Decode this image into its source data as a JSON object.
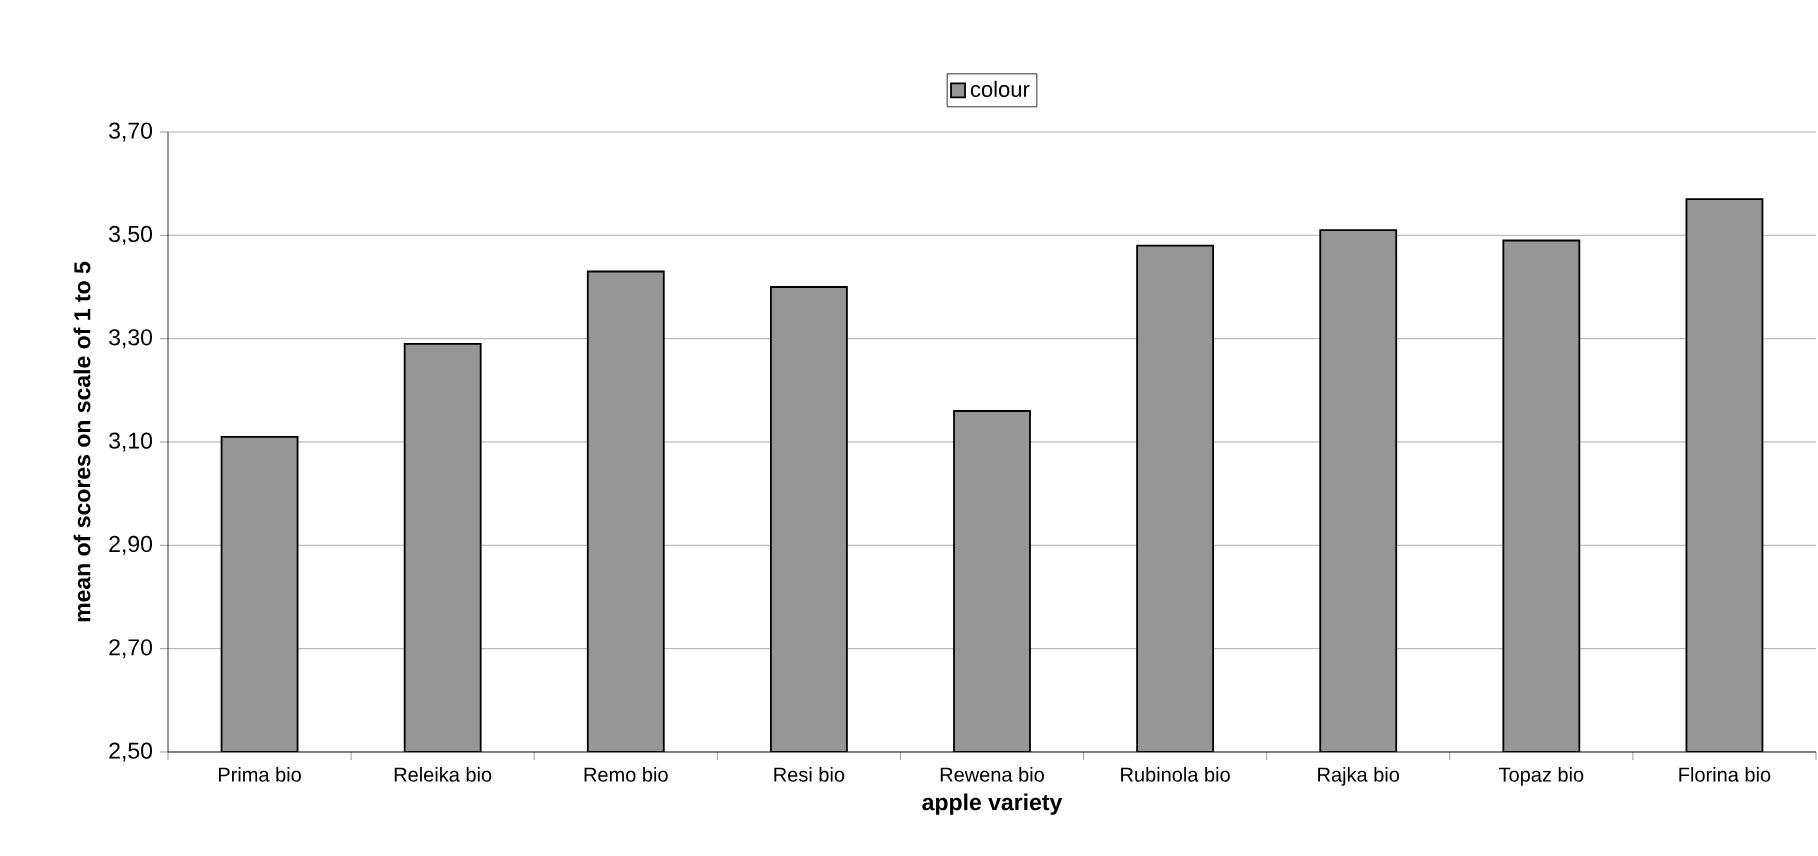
{
  "chart_data": {
    "type": "bar",
    "xlabel": "apple variety",
    "ylabel": "mean of scores on scale of 1 to 5",
    "categories": [
      "Prima bio",
      "Releika bio",
      "Remo bio",
      "Resi bio",
      "Rewena bio",
      "Rubinola bio",
      "Rajka bio",
      "Topaz bio",
      "Florina bio"
    ],
    "series": [
      {
        "name": "colour",
        "color": "#969696",
        "values": [
          3.11,
          3.29,
          3.43,
          3.4,
          3.16,
          3.48,
          3.51,
          3.49,
          3.57
        ]
      }
    ],
    "ylim": [
      2.5,
      3.7
    ],
    "yticks": [
      {
        "value": 2.5,
        "label": "2,50"
      },
      {
        "value": 2.7,
        "label": "2,70"
      },
      {
        "value": 2.9,
        "label": "2,90"
      },
      {
        "value": 3.1,
        "label": "3,10"
      },
      {
        "value": 3.3,
        "label": "3,30"
      },
      {
        "value": 3.5,
        "label": "3,50"
      },
      {
        "value": 3.7,
        "label": "3,70"
      }
    ],
    "grid": "y",
    "legend": "top"
  }
}
